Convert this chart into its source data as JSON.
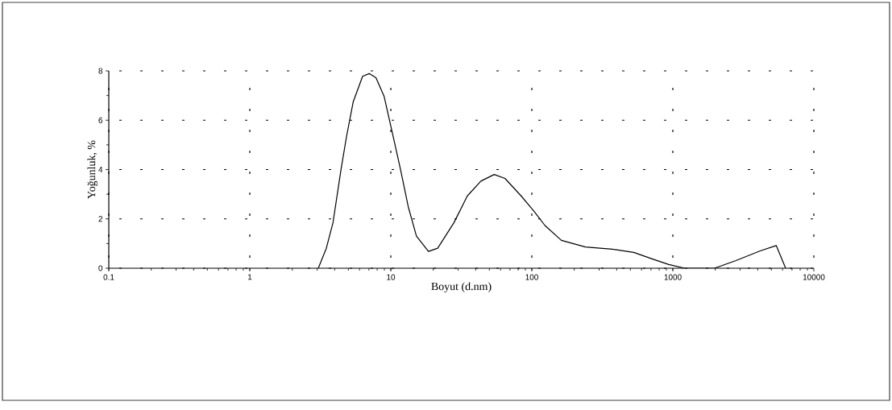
{
  "chart_data": {
    "type": "line",
    "xlabel": "Boyut (d.nm)",
    "ylabel": "Yoğunluk, %",
    "log": "x",
    "xlim": [
      0.1,
      10000
    ],
    "xticks": [
      0.1,
      1,
      10,
      100,
      1000,
      10000
    ],
    "ylim": [
      0,
      8
    ],
    "yticks": [
      0,
      2,
      4,
      6,
      8
    ],
    "grid": true,
    "line_style": "solid",
    "marker": "none",
    "x": [
      3.06,
      3.49,
      3.89,
      4.44,
      4.85,
      5.41,
      6.31,
      7.03,
      7.85,
      8.97,
      10.2,
      11.7,
      13.3,
      15.2,
      18.5,
      21.5,
      28,
      34.9,
      43.5,
      54.1,
      64.5,
      84,
      104,
      124,
      162,
      240,
      373,
      529,
      719,
      936,
      1219,
      1972,
      2803,
      4159,
      5410,
      6310
    ],
    "series": [
      {
        "color": "#000000",
        "values": [
          0,
          0.81,
          1.84,
          4.02,
          5.33,
          6.74,
          7.78,
          7.89,
          7.72,
          6.96,
          5.55,
          4.02,
          2.49,
          1.3,
          0.68,
          0.81,
          1.84,
          2.93,
          3.53,
          3.8,
          3.64,
          2.93,
          2.3,
          1.73,
          1.13,
          0.86,
          0.77,
          0.64,
          0.37,
          0.15,
          0,
          0,
          0.31,
          0.7,
          0.92,
          0
        ]
      }
    ]
  }
}
